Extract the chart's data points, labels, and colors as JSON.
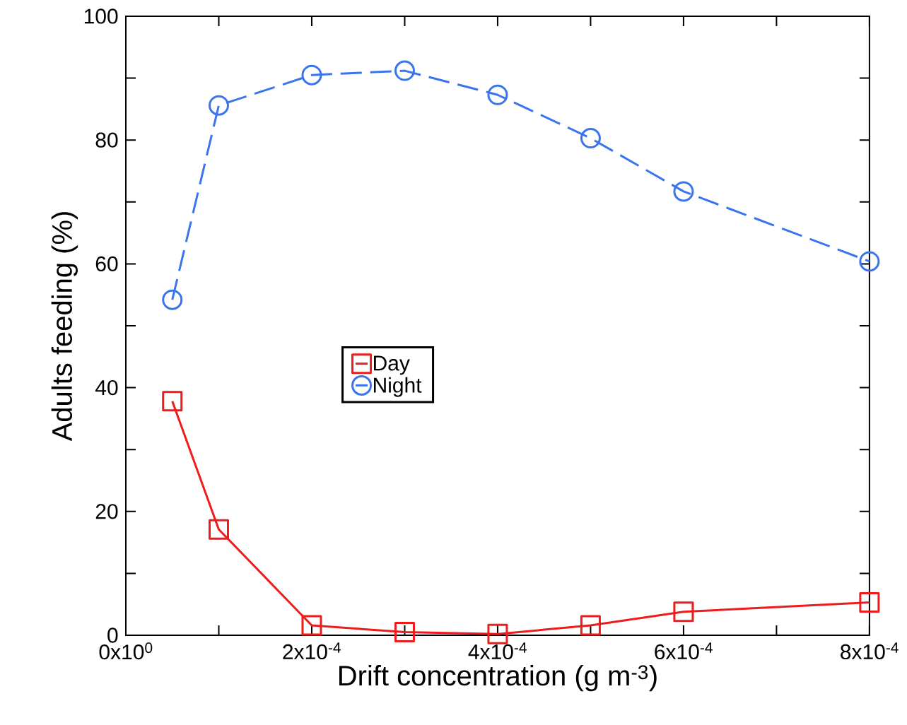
{
  "chart_data": {
    "type": "line",
    "xlabel": "Drift concentration (g m$^{-3}$)",
    "ylabel": "Adults feeding (%)",
    "x": [
      5e-05,
      0.0001,
      0.0002,
      0.0003,
      0.0004,
      0.0005,
      0.0006,
      0.0008
    ],
    "series": [
      {
        "name": "Day",
        "color": "#ee1c1c",
        "marker": "square",
        "line_style": "solid",
        "values": [
          37.8,
          17.1,
          1.6,
          0.5,
          0.2,
          1.6,
          3.8,
          5.3
        ]
      },
      {
        "name": "Night",
        "color": "#3a75ee",
        "marker": "circle",
        "line_style": "dashed",
        "values": [
          54.2,
          85.6,
          90.5,
          91.2,
          87.3,
          80.3,
          71.7,
          60.4
        ]
      }
    ],
    "xlim": [
      0,
      0.0008
    ],
    "ylim": [
      0,
      100
    ],
    "xticks": [
      {
        "value": 0,
        "label": "0x10$^{0}$"
      },
      {
        "value": 0.0002,
        "label": "2x10$^{-4}$"
      },
      {
        "value": 0.0004,
        "label": "4x10$^{-4}$"
      },
      {
        "value": 0.0006,
        "label": "6x10$^{-4}$"
      },
      {
        "value": 0.0008,
        "label": "8x10$^{-4}$"
      }
    ],
    "yticks": [
      0,
      20,
      40,
      60,
      80,
      100
    ],
    "grid": false,
    "legend": "center"
  }
}
